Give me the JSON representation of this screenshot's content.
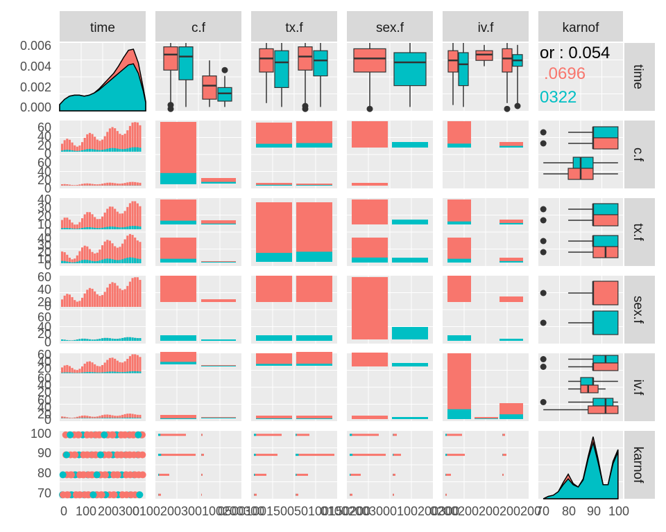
{
  "chart_data": {
    "type": "pairs",
    "variables": [
      "time",
      "c.f",
      "tx.f",
      "sex.f",
      "iv.f",
      "karnof"
    ],
    "groups": [
      "red",
      "teal"
    ],
    "colors": {
      "red": "#F8766D",
      "teal": "#00BFC4",
      "strip": "#D9D9D9",
      "panel": "#EBEBEB",
      "text": "#4D4D4D"
    },
    "time_density": {
      "x": [
        0,
        20,
        40,
        60,
        80,
        100,
        120,
        140,
        160,
        180,
        200,
        220,
        240,
        260,
        280,
        300,
        320,
        340,
        350
      ],
      "red": [
        0.0006,
        0.0011,
        0.0014,
        0.0015,
        0.0015,
        0.0014,
        0.0015,
        0.0017,
        0.0021,
        0.0026,
        0.0031,
        0.0036,
        0.0043,
        0.0051,
        0.0058,
        0.0059,
        0.0046,
        0.0022,
        0.0009
      ],
      "teal": [
        0.0006,
        0.0011,
        0.0014,
        0.0015,
        0.0015,
        0.0014,
        0.0015,
        0.0017,
        0.002,
        0.0024,
        0.0028,
        0.0032,
        0.0036,
        0.004,
        0.0044,
        0.0045,
        0.0036,
        0.0019,
        0.0008
      ]
    },
    "karnof_density": {
      "x": [
        70,
        72,
        74,
        76,
        78,
        80,
        82,
        84,
        86,
        88,
        90,
        92,
        94,
        96,
        98,
        100
      ],
      "red": [
        0.0,
        0.02,
        0.03,
        0.06,
        0.14,
        0.21,
        0.13,
        0.1,
        0.17,
        0.36,
        0.53,
        0.34,
        0.12,
        0.12,
        0.32,
        0.42
      ],
      "teal": [
        0.0,
        0.02,
        0.03,
        0.06,
        0.12,
        0.17,
        0.12,
        0.1,
        0.16,
        0.34,
        0.48,
        0.31,
        0.12,
        0.12,
        0.3,
        0.4
      ]
    },
    "correlation": {
      "label": "or : 0.054",
      "red_label": ".0696",
      "teal_label": "0322"
    },
    "strip_labels_top": [
      "time",
      "c.f",
      "tx.f",
      "sex.f",
      "iv.f",
      "karnof"
    ],
    "strip_labels_right": [
      "time",
      "c.f",
      "tx.f",
      "sex.f",
      "iv.f",
      "karnof"
    ],
    "axis_ticks": {
      "time_y": [
        "0.006",
        "0.004",
        "0.002",
        "0.000"
      ],
      "cf_y": [
        "60",
        "40",
        "20",
        "0",
        "60",
        "40",
        "20",
        "0"
      ],
      "txf_y": [
        "40",
        "30",
        "20",
        "10",
        "0",
        "40",
        "30",
        "20",
        "10",
        "0"
      ],
      "sexf_y": [
        "60",
        "40",
        "20",
        "0",
        "60",
        "40",
        "20",
        "0"
      ],
      "ivf_y": [
        "60",
        "40",
        "20",
        "60",
        "40",
        "20",
        "60",
        "40",
        "20",
        "0"
      ],
      "karnof_y": [
        "100",
        "90",
        "80",
        "70"
      ],
      "x_time": [
        "0",
        "100",
        "200",
        "300"
      ],
      "x_cf": "0100200300100200300",
      "x_txf": "0500100150050100150200",
      "x_sexf": "01002003000100200300",
      "x_ivf": "0200200200200200",
      "x_karnof": [
        "70",
        "80",
        "90",
        "100"
      ]
    }
  }
}
